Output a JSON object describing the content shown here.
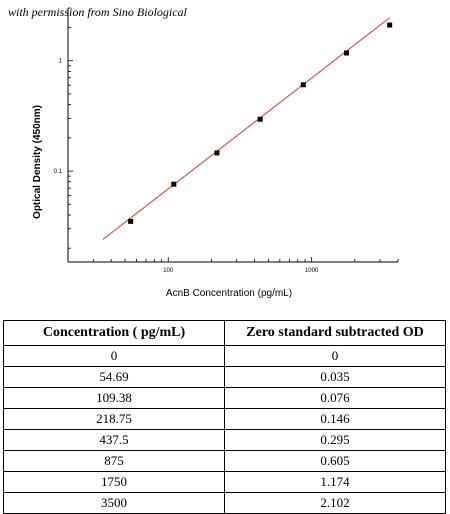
{
  "watermark": "with permission from Sino Biological",
  "chart_data": {
    "type": "scatter",
    "x_scale": "log",
    "y_scale": "log",
    "xlabel": "AcnB Concentration (pg/mL)",
    "ylabel": "Optical Density (450nm)",
    "xlim": [
      20,
      4000
    ],
    "ylim": [
      0.015,
      3
    ],
    "x_ticks": [
      100,
      1000
    ],
    "x_tick_labels": [
      "100",
      "1000"
    ],
    "y_ticks": [
      0.1,
      1
    ],
    "y_tick_labels": [
      "0.1",
      "1"
    ],
    "grid": false,
    "points": [
      {
        "x": 54.69,
        "y": 0.035
      },
      {
        "x": 109.38,
        "y": 0.076
      },
      {
        "x": 218.75,
        "y": 0.146
      },
      {
        "x": 437.5,
        "y": 0.295
      },
      {
        "x": 875,
        "y": 0.605
      },
      {
        "x": 1750,
        "y": 1.174
      },
      {
        "x": 3500,
        "y": 2.102
      }
    ],
    "fit_line": {
      "color": "#e03030",
      "x_start": 35,
      "y_start": 0.024,
      "x_end": 3500,
      "y_end": 2.45
    },
    "marker_color": "#000000"
  },
  "table": {
    "headers": [
      "Concentration ( pg/mL)",
      "Zero standard subtracted OD"
    ],
    "rows": [
      [
        "0",
        "0"
      ],
      [
        "54.69",
        "0.035"
      ],
      [
        "109.38",
        "0.076"
      ],
      [
        "218.75",
        "0.146"
      ],
      [
        "437.5",
        "0.295"
      ],
      [
        "875",
        "0.605"
      ],
      [
        "1750",
        "1.174"
      ],
      [
        "3500",
        "2.102"
      ]
    ]
  }
}
